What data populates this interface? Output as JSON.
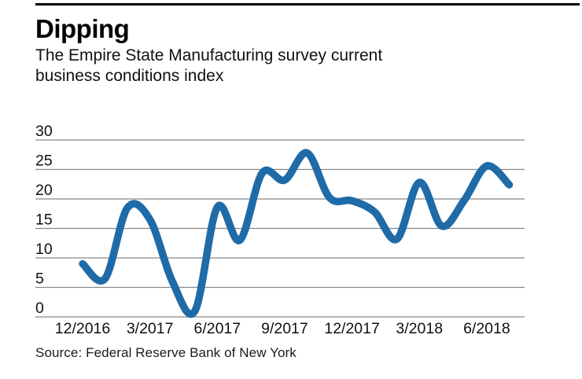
{
  "page": {
    "title": "Dipping",
    "subtitle_line1": "The Empire State Manufacturing survey current",
    "subtitle_line2": "business conditions index",
    "source": "Source: Federal Reserve Bank of New York"
  },
  "colors": {
    "line": "#1f6ba8",
    "grid": "#878787",
    "text": "#111111",
    "top_rule": "#000000"
  },
  "chart_data": {
    "type": "line",
    "title": "Dipping",
    "subtitle": "The Empire State Manufacturing survey current business conditions index",
    "x": [
      "12/2016",
      "1/2017",
      "2/2017",
      "3/2017",
      "4/2017",
      "5/2017",
      "6/2017",
      "7/2017",
      "8/2017",
      "9/2017",
      "10/2017",
      "11/2017",
      "12/2017",
      "1/2018",
      "2/2018",
      "3/2018",
      "4/2018",
      "5/2018",
      "6/2018",
      "7/2018"
    ],
    "values": [
      9.0,
      6.5,
      18.5,
      16.5,
      6.0,
      1.0,
      18.6,
      13.0,
      24.4,
      23.2,
      27.8,
      20.2,
      19.7,
      17.8,
      13.2,
      22.8,
      15.4,
      19.8,
      25.6,
      22.4
    ],
    "x_tick_labels": [
      "12/2016",
      "3/2017",
      "6/2017",
      "9/2017",
      "12/2017",
      "3/2018",
      "6/2018"
    ],
    "x_tick_every": 3,
    "y_ticks": [
      0,
      5,
      10,
      15,
      20,
      25,
      30
    ],
    "ylim": [
      0,
      30
    ],
    "grid": "horizontal",
    "legend": "none",
    "source": "Source: Federal Reserve Bank of New York"
  }
}
